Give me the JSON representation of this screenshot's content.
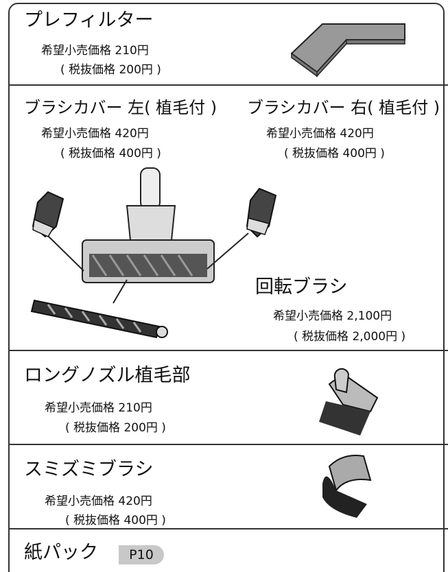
{
  "sections": [
    {
      "title": "プレフィルター",
      "price": "希望小売価格 210円",
      "tax": "( 税抜価格 200円 )"
    },
    {
      "items": [
        {
          "title": "ブラシカバー 左( 植毛付 )",
          "price": "希望小売価格 420円",
          "tax": "( 税抜価格 400円 )"
        },
        {
          "title": "ブラシカバー 右( 植毛付 )",
          "price": "希望小売価格 420円",
          "tax": "( 税抜価格 400円 )"
        },
        {
          "title": "回転ブラシ",
          "price": "希望小売価格 2,100円",
          "tax": "( 税抜価格 2,000円 )"
        }
      ]
    },
    {
      "title": "ロングノズル植毛部",
      "price": "希望小売価格 210円",
      "tax": "( 税抜価格 200円 )"
    },
    {
      "title": "スミズミブラシ",
      "price": "希望小売価格 420円",
      "tax": "( 税抜価格 400円 )"
    },
    {
      "title": "紙パック",
      "badge": "P10"
    }
  ]
}
